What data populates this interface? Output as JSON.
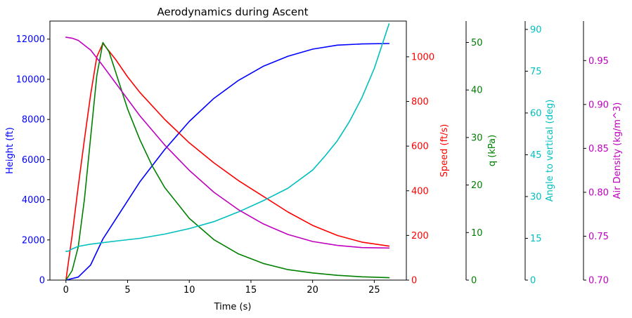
{
  "chart_data": {
    "type": "line",
    "title": "Aerodynamics during Ascent",
    "xlabel": "Time (s)",
    "xlim": [
      -1.3,
      27.6
    ],
    "xticks": [
      0,
      5,
      10,
      15,
      20,
      25
    ],
    "axes": [
      {
        "id": "height",
        "label": "Height (ft)",
        "color": "#0000ff",
        "side": "left",
        "ylim": [
          0,
          12900
        ],
        "ticks": [
          0,
          2000,
          4000,
          6000,
          8000,
          10000,
          12000
        ],
        "tick_labels": [
          "0",
          "2000",
          "4000",
          "6000",
          "8000",
          "10000",
          "12000"
        ]
      },
      {
        "id": "speed",
        "label": "Speed (ft/s)",
        "color": "#ff0000",
        "side": "right",
        "ylim": [
          0,
          1160
        ],
        "ticks": [
          0,
          200,
          400,
          600,
          800,
          1000
        ],
        "tick_labels": [
          "0",
          "200",
          "400",
          "600",
          "800",
          "1000"
        ]
      },
      {
        "id": "q",
        "label": "q (kPa)",
        "color": "#008000",
        "side": "right",
        "ylim": [
          0,
          54.5
        ],
        "ticks": [
          0,
          10,
          20,
          30,
          40,
          50
        ],
        "tick_labels": [
          "0",
          "10",
          "20",
          "30",
          "40",
          "50"
        ]
      },
      {
        "id": "angle",
        "label": "Angle to vertical (deg)",
        "color": "#00bfbf",
        "side": "right",
        "ylim": [
          0,
          93
        ],
        "ticks": [
          0,
          15,
          30,
          45,
          60,
          75,
          90
        ],
        "tick_labels": [
          "0",
          "15",
          "30",
          "45",
          "60",
          "75",
          "90"
        ]
      },
      {
        "id": "density",
        "label": "Air Density (kg/m^3)",
        "color": "#bf00bf",
        "side": "right",
        "ylim": [
          0.7,
          0.995
        ],
        "ticks": [
          0.7,
          0.75,
          0.8,
          0.85,
          0.9,
          0.95
        ],
        "tick_labels": [
          "0.70",
          "0.75",
          "0.80",
          "0.85",
          "0.90",
          "0.95"
        ]
      }
    ],
    "series": [
      {
        "axis": "height",
        "color": "#0000ff",
        "x": [
          0,
          1,
          2,
          3,
          4,
          6,
          8,
          10,
          12,
          14,
          16,
          18,
          20,
          22,
          24,
          26.2
        ],
        "y": [
          0,
          150,
          750,
          2050,
          3000,
          4900,
          6500,
          7900,
          9050,
          9950,
          10650,
          11150,
          11500,
          11700,
          11760,
          11780
        ]
      },
      {
        "axis": "speed",
        "color": "#ff0000",
        "x": [
          0,
          0.5,
          1,
          1.5,
          2,
          2.5,
          3,
          4,
          5,
          6,
          8,
          10,
          12,
          14,
          16,
          18,
          20,
          22,
          24,
          26.2
        ],
        "y": [
          0,
          200,
          420,
          630,
          830,
          1000,
          1060,
          990,
          910,
          840,
          720,
          615,
          525,
          445,
          375,
          305,
          245,
          200,
          170,
          152
        ]
      },
      {
        "axis": "q",
        "color": "#008000",
        "x": [
          0,
          0.5,
          1,
          1.5,
          2,
          2.5,
          3,
          3.5,
          4,
          5,
          6,
          7,
          8,
          10,
          12,
          14,
          16,
          18,
          20,
          22,
          24,
          26.2
        ],
        "y": [
          0,
          2,
          7,
          17,
          30,
          43,
          50,
          48,
          44,
          36,
          29.5,
          24,
          19.5,
          13,
          8.5,
          5.5,
          3.5,
          2.2,
          1.5,
          1.0,
          0.7,
          0.5
        ]
      },
      {
        "axis": "angle",
        "color": "#00bfbf",
        "x": [
          0,
          0.2,
          0.5,
          1,
          2,
          4,
          6,
          8,
          10,
          12,
          14,
          16,
          18,
          20,
          21,
          22,
          23,
          24,
          25,
          26.2
        ],
        "y": [
          10.3,
          10.4,
          11.2,
          12.1,
          12.9,
          14.0,
          15.0,
          16.5,
          18.5,
          21.0,
          24.5,
          28.5,
          33.0,
          39.5,
          44.5,
          50.0,
          57.0,
          65.5,
          76.0,
          92.0
        ]
      },
      {
        "axis": "density",
        "color": "#bf00bf",
        "x": [
          0,
          0.5,
          1,
          2,
          3,
          4,
          6,
          8,
          10,
          12,
          14,
          16,
          18,
          20,
          22,
          24,
          26.2
        ],
        "y": [
          0.9765,
          0.9755,
          0.973,
          0.962,
          0.944,
          0.925,
          0.887,
          0.854,
          0.825,
          0.8,
          0.78,
          0.764,
          0.752,
          0.744,
          0.7395,
          0.737,
          0.7365
        ]
      }
    ]
  }
}
